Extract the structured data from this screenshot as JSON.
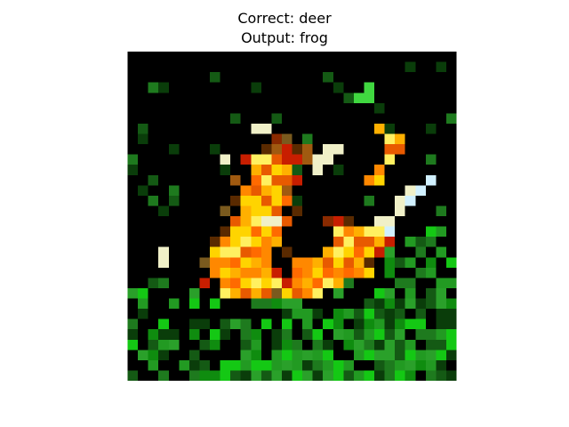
{
  "figure": {
    "title_line_1": "Correct: deer",
    "title_line_2": "Output: frog"
  },
  "image": {
    "description_color_palette": [
      "#000000",
      "#14c814",
      "#1e7a1e",
      "#ffd400",
      "#ff8800",
      "#c81e00",
      "#f0f0c8",
      "#7a5a1e"
    ]
  }
}
